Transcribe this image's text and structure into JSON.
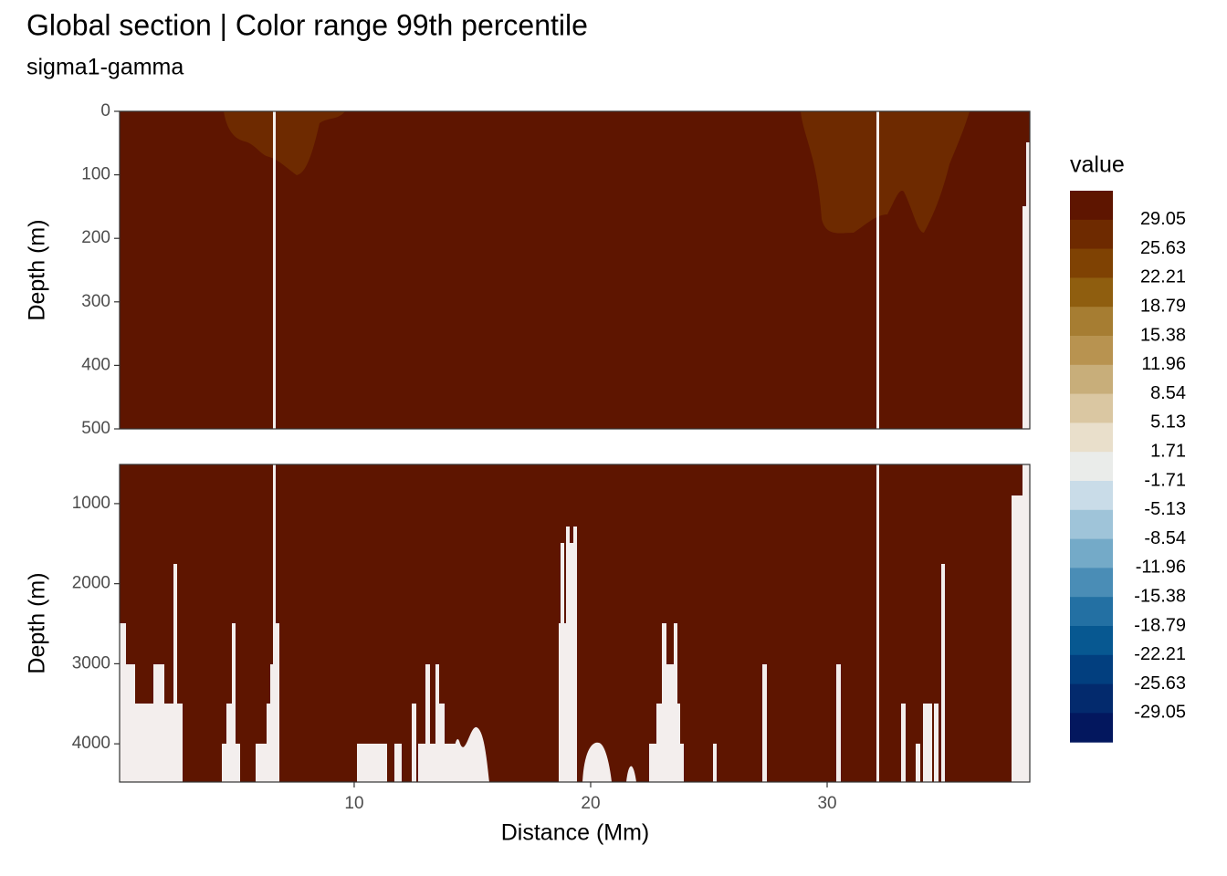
{
  "chart_data": {
    "type": "contour",
    "title": "Global section | Color range 99th percentile",
    "subtitle": "sigma1-gamma",
    "x_label": "Distance (Mm)",
    "y_label": "Depth (m)",
    "xlim": [
      0.08,
      38.57
    ],
    "xticks": [
      10,
      20,
      30
    ],
    "panels": [
      {
        "ylim": [
          0,
          500
        ],
        "yticks": [
          0,
          100,
          200,
          300,
          400,
          500
        ],
        "y_reversed": true
      },
      {
        "ylim": [
          511,
          4477
        ],
        "yticks": [
          1000,
          2000,
          3000,
          4000
        ],
        "y_reversed": true
      }
    ],
    "grid": true,
    "legend": {
      "title": "value",
      "breaks": [
        29.05,
        25.63,
        22.21,
        18.79,
        15.38,
        11.96,
        8.54,
        5.13,
        1.71,
        -1.71,
        -5.13,
        -8.54,
        -11.96,
        -15.38,
        -18.79,
        -22.21,
        -25.63,
        -29.05
      ],
      "colors": [
        "#5e1500",
        "#6e2a00",
        "#7f4203",
        "#8f5e0f",
        "#a67d32",
        "#b89350",
        "#c8ae7a",
        "#dac7a2",
        "#e9dfcb",
        "#eaecea",
        "#c9dce8",
        "#9fc4d9",
        "#74aac8",
        "#4a8db6",
        "#2370a3",
        "#075891",
        "#023f7f",
        "#032a6d",
        "#03175e"
      ]
    }
  }
}
